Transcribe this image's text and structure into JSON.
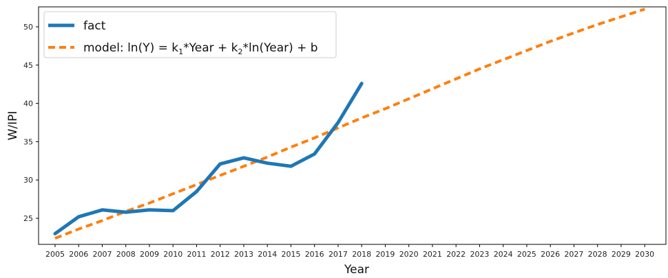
{
  "chart_data": {
    "type": "line",
    "xlabel": "Year",
    "ylabel": "W/IPI",
    "x_ticks": [
      2005,
      2006,
      2007,
      2008,
      2009,
      2010,
      2011,
      2012,
      2013,
      2014,
      2015,
      2016,
      2017,
      2018,
      2019,
      2020,
      2021,
      2022,
      2023,
      2024,
      2025,
      2026,
      2027,
      2028,
      2029,
      2030
    ],
    "y_ticks": [
      25,
      30,
      35,
      40,
      45,
      50
    ],
    "xlim": [
      2004.3,
      2030.9
    ],
    "ylim": [
      21.6,
      52.6
    ],
    "grid": false,
    "legend_position": "top-left",
    "series": [
      {
        "name": "fact",
        "color": "#1f77b4",
        "style": "solid",
        "x": [
          2005,
          2006,
          2007,
          2008,
          2009,
          2010,
          2011,
          2012,
          2013,
          2014,
          2015,
          2016,
          2017,
          2018
        ],
        "y": [
          23.0,
          25.2,
          26.1,
          25.8,
          26.1,
          26.0,
          28.5,
          32.1,
          32.9,
          32.2,
          31.8,
          33.4,
          37.5,
          42.6
        ]
      },
      {
        "name_parts": [
          "model: ln(Y) = k",
          "1",
          "*Year + k",
          "2",
          "*ln(Year) + b"
        ],
        "color": "#ff7f0e",
        "style": "dashed",
        "x": [
          2005,
          2006,
          2007,
          2008,
          2009,
          2010,
          2011,
          2012,
          2013,
          2014,
          2015,
          2016,
          2017,
          2018,
          2019,
          2020,
          2021,
          2022,
          2023,
          2024,
          2025,
          2026,
          2027,
          2028,
          2029,
          2030
        ],
        "y": [
          22.4,
          23.6,
          24.7,
          25.9,
          27.0,
          28.2,
          29.4,
          30.6,
          31.8,
          33.0,
          34.3,
          35.5,
          36.8,
          38.1,
          39.3,
          40.6,
          41.9,
          43.2,
          44.5,
          45.7,
          46.9,
          48.1,
          49.2,
          50.3,
          51.3,
          52.3
        ]
      }
    ]
  }
}
